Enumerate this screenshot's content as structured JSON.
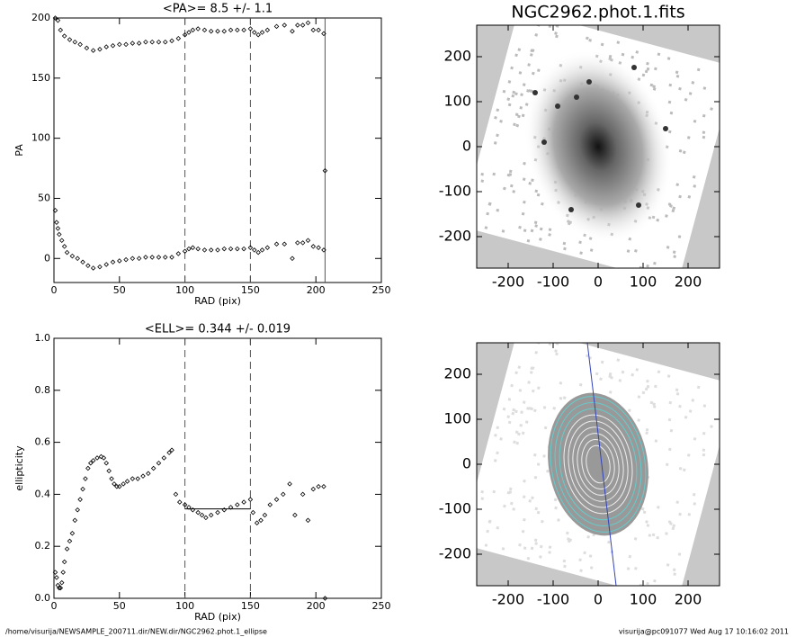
{
  "chart_data": [
    {
      "type": "scatter",
      "title": "<PA>=   8.5 +/-   1.1",
      "x_label": "RAD (pix)",
      "y_label": "PA",
      "xlim": [
        0,
        250
      ],
      "ylim": [
        -20,
        200
      ],
      "xticks": [
        0,
        50,
        100,
        150,
        200,
        250
      ],
      "yticks": [
        0,
        50,
        100,
        150,
        200
      ],
      "vlines": [
        {
          "x": 100,
          "style": "dashed"
        },
        {
          "x": 150,
          "style": "dashed"
        },
        {
          "x": 207,
          "style": "solid"
        }
      ],
      "x": [
        1,
        3,
        5,
        8,
        12,
        16,
        20,
        25,
        30,
        35,
        40,
        45,
        50,
        55,
        60,
        65,
        70,
        75,
        80,
        85,
        90,
        95,
        100,
        103,
        106,
        110,
        115,
        120,
        125,
        130,
        135,
        140,
        145,
        150,
        153,
        156,
        159,
        163,
        170,
        176,
        182,
        186,
        190,
        194,
        198,
        202,
        206,
        1,
        2,
        3,
        4,
        6,
        8,
        10,
        14,
        18,
        22,
        26,
        30,
        35,
        40,
        45,
        50,
        55,
        60,
        65,
        70,
        75,
        80,
        85,
        90,
        95,
        100,
        103,
        106,
        110,
        115,
        120,
        125,
        130,
        135,
        140,
        145,
        150,
        153,
        156,
        159,
        163,
        170,
        176,
        182,
        186,
        190,
        194,
        198,
        202,
        206,
        207
      ],
      "values": [
        200,
        198,
        190,
        185,
        182,
        180,
        178,
        175,
        173,
        174,
        176,
        177,
        178,
        178,
        179,
        179,
        180,
        180,
        180,
        180,
        181,
        183,
        186,
        188,
        190,
        191,
        190,
        189,
        189,
        189,
        190,
        190,
        190,
        191,
        188,
        186,
        188,
        190,
        193,
        194,
        189,
        194,
        194,
        196,
        190,
        190,
        187,
        40,
        30,
        25,
        20,
        15,
        10,
        5,
        2,
        0,
        -3,
        -6,
        -8,
        -7,
        -5,
        -3,
        -2,
        -1,
        0,
        0,
        1,
        1,
        1,
        1,
        1,
        4,
        6,
        8,
        9,
        8,
        7,
        7,
        7,
        8,
        8,
        8,
        8,
        9,
        7,
        5,
        7,
        9,
        12,
        12,
        0,
        13,
        13,
        15,
        10,
        9,
        7,
        73
      ]
    },
    {
      "type": "image",
      "title": "NGC2962.phot.1.fits",
      "xlim": [
        -270,
        270
      ],
      "ylim": [
        -270,
        270
      ],
      "xticks": [
        -200,
        -100,
        0,
        100,
        200
      ],
      "yticks": [
        -200,
        -100,
        0,
        100,
        200
      ]
    },
    {
      "type": "scatter",
      "title": "<ELL>= 0.344 +/-  0.019",
      "x_label": "RAD (pix)",
      "y_label": "ellipticity",
      "xlim": [
        0,
        250
      ],
      "ylim": [
        0,
        1
      ],
      "xticks": [
        0,
        50,
        100,
        150,
        200,
        250
      ],
      "yticks": [
        {
          "value": 0,
          "label": "0.0"
        },
        0.2,
        0.4,
        0.6,
        0.8,
        {
          "value": 1,
          "label": "1.0"
        }
      ],
      "vlines": [
        {
          "x": 100,
          "style": "dashed"
        },
        {
          "x": 150,
          "style": "dashed"
        }
      ],
      "mean_line": {
        "y": 0.344,
        "x": [
          100,
          150
        ]
      },
      "x": [
        1,
        2,
        3,
        4,
        5,
        6,
        7,
        8,
        10,
        12,
        14,
        16,
        18,
        20,
        22,
        24,
        26,
        28,
        30,
        33,
        36,
        38,
        40,
        42,
        44,
        46,
        48,
        50,
        53,
        56,
        60,
        64,
        68,
        72,
        76,
        80,
        84,
        88,
        90,
        93,
        96,
        100,
        103,
        106,
        110,
        113,
        116,
        120,
        125,
        130,
        135,
        140,
        145,
        150,
        152,
        155,
        158,
        161,
        165,
        170,
        175,
        180,
        184,
        190,
        194,
        198,
        202,
        206,
        207
      ],
      "values": [
        0.1,
        0.08,
        0.05,
        0.04,
        0.04,
        0.06,
        0.1,
        0.14,
        0.19,
        0.22,
        0.25,
        0.3,
        0.34,
        0.38,
        0.42,
        0.46,
        0.5,
        0.52,
        0.53,
        0.54,
        0.545,
        0.54,
        0.52,
        0.49,
        0.46,
        0.44,
        0.43,
        0.43,
        0.44,
        0.45,
        0.46,
        0.46,
        0.47,
        0.48,
        0.5,
        0.52,
        0.54,
        0.56,
        0.57,
        0.4,
        0.37,
        0.36,
        0.35,
        0.34,
        0.33,
        0.32,
        0.31,
        0.32,
        0.33,
        0.34,
        0.35,
        0.36,
        0.37,
        0.38,
        0.33,
        0.29,
        0.3,
        0.32,
        0.36,
        0.38,
        0.4,
        0.44,
        0.32,
        0.4,
        0.3,
        0.42,
        0.43,
        0.43,
        0
      ]
    },
    {
      "type": "image_contours",
      "xlim": [
        -270,
        270
      ],
      "ylim": [
        -270,
        270
      ],
      "xticks": [
        -200,
        -100,
        0,
        100,
        200
      ],
      "yticks": [
        -200,
        -100,
        0,
        100,
        200
      ]
    }
  ],
  "footer": {
    "left": "/home/visurija/NEWSAMPLE_200711.dir/NEW.dir/NGC2962.phot.1_ellipse",
    "right": "visurija@pc091077  Wed Aug 17 10:16:02 2011"
  }
}
